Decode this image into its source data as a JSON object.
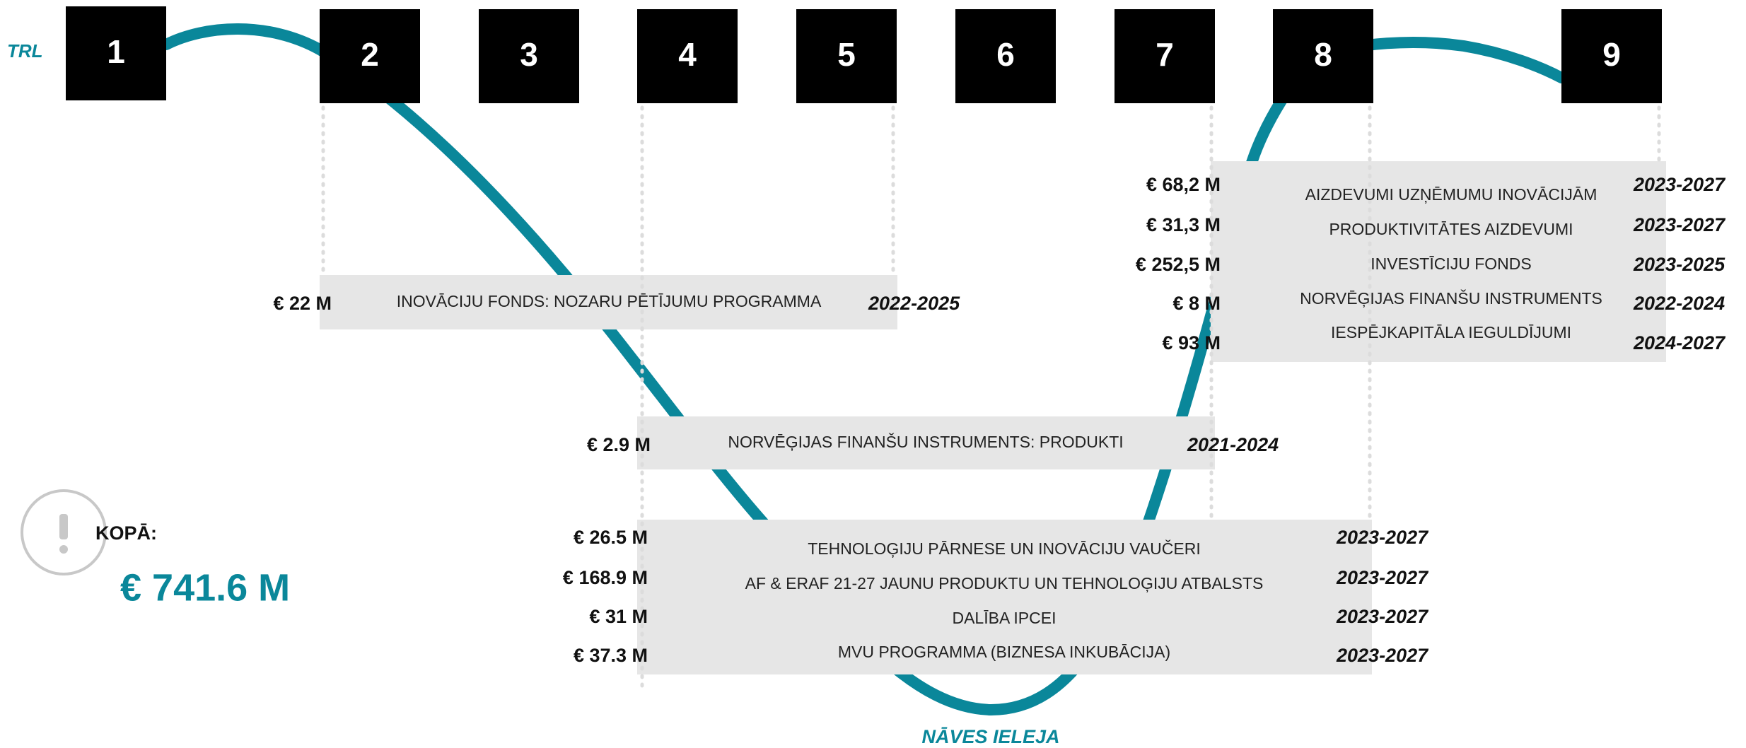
{
  "trl_label": "TRL",
  "trl_levels": [
    "1",
    "2",
    "3",
    "4",
    "5",
    "6",
    "7",
    "8",
    "9"
  ],
  "groups": [
    {
      "rows": [
        {
          "name": "INOVĀCIJU FONDS: NOZARU PĒTĪJUMU PROGRAMMA",
          "amount": "€ 22 M",
          "years": "2022-2025"
        }
      ]
    },
    {
      "rows": [
        {
          "name": "NORVĒĢIJAS FINANŠU INSTRUMENTS: PRODUKTI",
          "amount": "€ 2.9 M",
          "years": "2021-2024"
        }
      ]
    },
    {
      "rows": [
        {
          "name": "TEHNOLOĢIJU PĀRNESE UN INOVĀCIJU VAUČERI",
          "amount": "€ 26.5 M",
          "years": "2023-2027"
        },
        {
          "name": "AF & ERAF 21-27 JAUNU PRODUKTU UN TEHNOLOĢIJU ATBALSTS",
          "amount": "€ 168.9 M",
          "years": "2023-2027"
        },
        {
          "name": "DALĪBA IPCEI",
          "amount": "€ 31 M",
          "years": "2023-2027"
        },
        {
          "name": "MVU PROGRAMMA (BIZNESA INKUBĀCIJA)",
          "amount": "€ 37.3 M",
          "years": "2023-2027"
        }
      ]
    },
    {
      "rows": [
        {
          "name": "AIZDEVUMI UZŅĒMUMU INOVĀCIJĀM",
          "amount": "€ 68,2 M",
          "years": "2023-2027"
        },
        {
          "name": "PRODUKTIVITĀTES AIZDEVUMI",
          "amount": "€ 31,3 M",
          "years": "2023-2027"
        },
        {
          "name": "INVESTĪCIJU FONDS",
          "amount": "€ 252,5 M",
          "years": "2023-2025"
        },
        {
          "name": "NORVĒĢIJAS FINANŠU INSTRUMENTS",
          "amount": "€ 8 M",
          "years": "2022-2024"
        },
        {
          "name": "IESPĒJKAPITĀLA IEGULDĪJUMI",
          "amount": "€ 93 M",
          "years": "2024-2027"
        }
      ]
    }
  ],
  "total_label": "KOPĀ:",
  "total_value": "€ 741.6 M",
  "valley_label": "NĀVES IELEJA"
}
